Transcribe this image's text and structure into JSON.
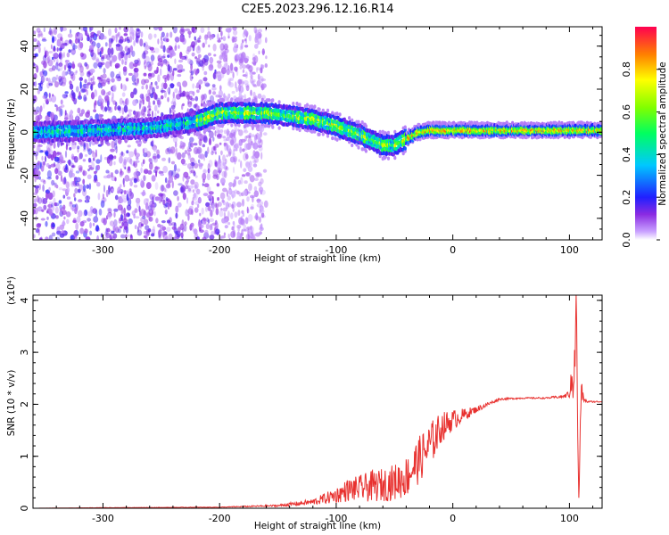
{
  "title": "C2E5.2023.296.12.16.R14",
  "colors": {
    "snr_line": "#e8312f",
    "background": "#ffffff",
    "axis": "#000000"
  },
  "chart_data": [
    {
      "type": "heatmap",
      "title": "C2E5.2023.296.12.16.R14",
      "xlabel": "Height of straight line (km)",
      "ylabel": "Frequency (Hz)",
      "xlim": [
        -360,
        128
      ],
      "ylim": [
        -50,
        49
      ],
      "x_ticks": [
        -300,
        -200,
        -100,
        0,
        100
      ],
      "x_tick_labels": [
        "-300",
        "-200",
        "-100",
        "0",
        "100"
      ],
      "y_ticks": [
        -40,
        -20,
        0,
        20,
        40
      ],
      "y_tick_labels": [
        "-40",
        "-20",
        "0",
        "20",
        "40"
      ],
      "grid": false,
      "colorbar": {
        "label": "Normalized spectral amplitude",
        "range": [
          0,
          1
        ],
        "ticks": [
          0.0,
          0.2,
          0.4,
          0.6,
          0.8
        ],
        "tick_labels": [
          "0.0",
          "0.2",
          "0.4",
          "0.6",
          "0.8"
        ],
        "colormap": "rainbow"
      },
      "ridge": {
        "x": [
          -360,
          -300,
          -260,
          -220,
          -200,
          -160,
          -120,
          -100,
          -80,
          -60,
          -50,
          -40,
          -30,
          -20,
          0,
          50,
          100,
          128
        ],
        "y": [
          0,
          1,
          2,
          5,
          9,
          9,
          6,
          3,
          -1,
          -6,
          -6,
          -3,
          0,
          1,
          1,
          1,
          1,
          1
        ],
        "peak_amplitude": 1.0
      }
    },
    {
      "type": "line",
      "xlabel": "Height of straight line (km)",
      "ylabel": "SNR (10 * v/v)",
      "y_multiplier": "(x10⁴)",
      "xlim": [
        -360,
        128
      ],
      "ylim": [
        0,
        4.1
      ],
      "x_ticks": [
        -300,
        -200,
        -100,
        0,
        100
      ],
      "x_tick_labels": [
        "-300",
        "-200",
        "-100",
        "0",
        "100"
      ],
      "y_ticks": [
        0,
        1,
        2,
        3,
        4
      ],
      "y_tick_labels": [
        "0",
        "1",
        "2",
        "3",
        "4"
      ],
      "grid": false,
      "series": [
        {
          "color": "#e8312f",
          "x": [
            -360,
            -300,
            -200,
            -150,
            -120,
            -100,
            -90,
            -80,
            -70,
            -60,
            -50,
            -40,
            -30,
            -20,
            -10,
            0,
            10,
            20,
            30,
            40,
            60,
            80,
            95,
            100,
            103,
            105,
            106,
            107,
            108,
            109,
            110,
            112,
            115,
            128
          ],
          "y": [
            0.0,
            0.01,
            0.02,
            0.05,
            0.12,
            0.25,
            0.35,
            0.38,
            0.42,
            0.45,
            0.5,
            0.6,
            0.9,
            1.2,
            1.55,
            1.7,
            1.8,
            1.9,
            2.0,
            2.1,
            2.12,
            2.12,
            2.15,
            2.2,
            2.5,
            3.4,
            4.1,
            1.5,
            0.2,
            1.0,
            2.3,
            2.1,
            2.05,
            2.05
          ],
          "noise": [
            0.0,
            0.003,
            0.005,
            0.02,
            0.06,
            0.15,
            0.22,
            0.25,
            0.3,
            0.32,
            0.35,
            0.4,
            0.45,
            0.45,
            0.3,
            0.2,
            0.12,
            0.06,
            0.04,
            0.02,
            0.015,
            0.015,
            0.03,
            0.08,
            0.5,
            1.0,
            0.0,
            0.0,
            0.0,
            0.5,
            0.3,
            0.05,
            0.02,
            0.01
          ]
        }
      ]
    }
  ]
}
